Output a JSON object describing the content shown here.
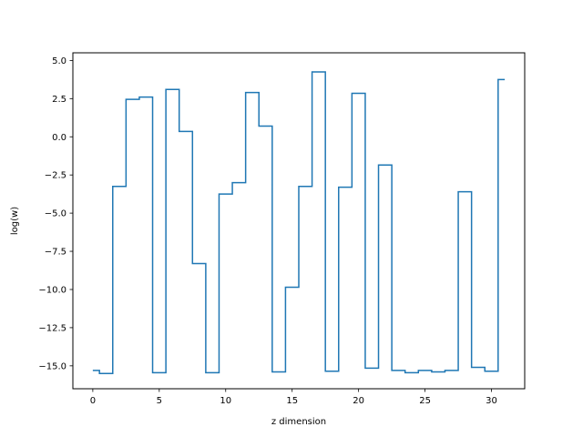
{
  "chart_data": {
    "type": "line",
    "drawstyle": "steps-mid",
    "title": "",
    "xlabel": "z dimension",
    "ylabel": "log(w)",
    "xlim": [
      -1.5,
      32.5
    ],
    "ylim": [
      -16.5,
      5.5
    ],
    "xticks": [
      0,
      5,
      10,
      15,
      20,
      25,
      30
    ],
    "xtick_labels": [
      "0",
      "5",
      "10",
      "15",
      "20",
      "25",
      "30"
    ],
    "yticks": [
      5.0,
      2.5,
      0.0,
      -2.5,
      -5.0,
      -7.5,
      -10.0,
      -12.5,
      -15.0
    ],
    "ytick_labels": [
      "5.0",
      "2.5",
      "0.0",
      "−2.5",
      "−5.0",
      "−7.5",
      "−10.0",
      "−12.5",
      "−15.0"
    ],
    "grid": false,
    "series": [
      {
        "color": "#1f77b4",
        "x": [
          0,
          1,
          2,
          3,
          4,
          5,
          6,
          7,
          8,
          9,
          10,
          11,
          12,
          13,
          14,
          15,
          16,
          17,
          18,
          19,
          20,
          21,
          22,
          23,
          24,
          25,
          26,
          27,
          28,
          29,
          30,
          31
        ],
        "values": [
          -15.3,
          -15.5,
          -3.25,
          2.45,
          2.6,
          -15.45,
          3.1,
          0.35,
          -8.3,
          -15.45,
          -3.75,
          -3.0,
          2.9,
          0.7,
          -15.4,
          -9.85,
          -3.25,
          4.25,
          -15.35,
          -3.3,
          2.85,
          -15.15,
          -1.85,
          -15.3,
          -15.45,
          -15.3,
          -15.4,
          -15.3,
          -3.6,
          -15.1,
          -15.35,
          3.75
        ]
      }
    ]
  }
}
